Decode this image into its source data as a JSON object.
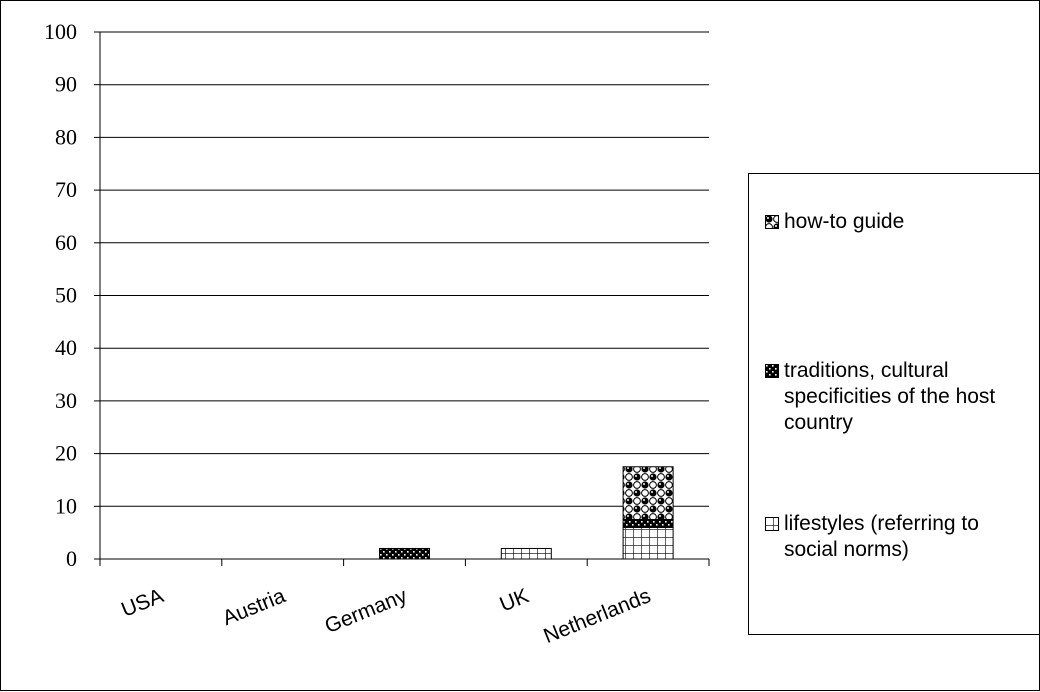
{
  "chart_data": {
    "type": "bar",
    "stacked": true,
    "categories": [
      "USA",
      "Austria",
      "Germany",
      "UK",
      "Netherlands"
    ],
    "series": [
      {
        "name": "lifestyles (referring to social norms)",
        "pattern": "grid",
        "values": [
          0,
          0,
          0,
          2,
          6
        ]
      },
      {
        "name": "traditions, cultural specificities of the host country",
        "pattern": "dense-dots",
        "values": [
          0,
          0,
          2,
          0,
          1.5
        ]
      },
      {
        "name": "how-to guide",
        "pattern": "checker-circles",
        "values": [
          0,
          0,
          0,
          0,
          10
        ]
      }
    ],
    "ylim": [
      0,
      100
    ],
    "yticks": [
      0,
      10,
      20,
      30,
      40,
      50,
      60,
      70,
      80,
      90,
      100
    ],
    "grid": true,
    "legend_position": "right",
    "legend_order": [
      "how-to guide",
      "traditions, cultural specificities of the host country",
      "lifestyles (referring to social norms)"
    ]
  },
  "colors": {
    "axis": "#000000",
    "background": "#ffffff",
    "bar_fill": "#000000"
  }
}
